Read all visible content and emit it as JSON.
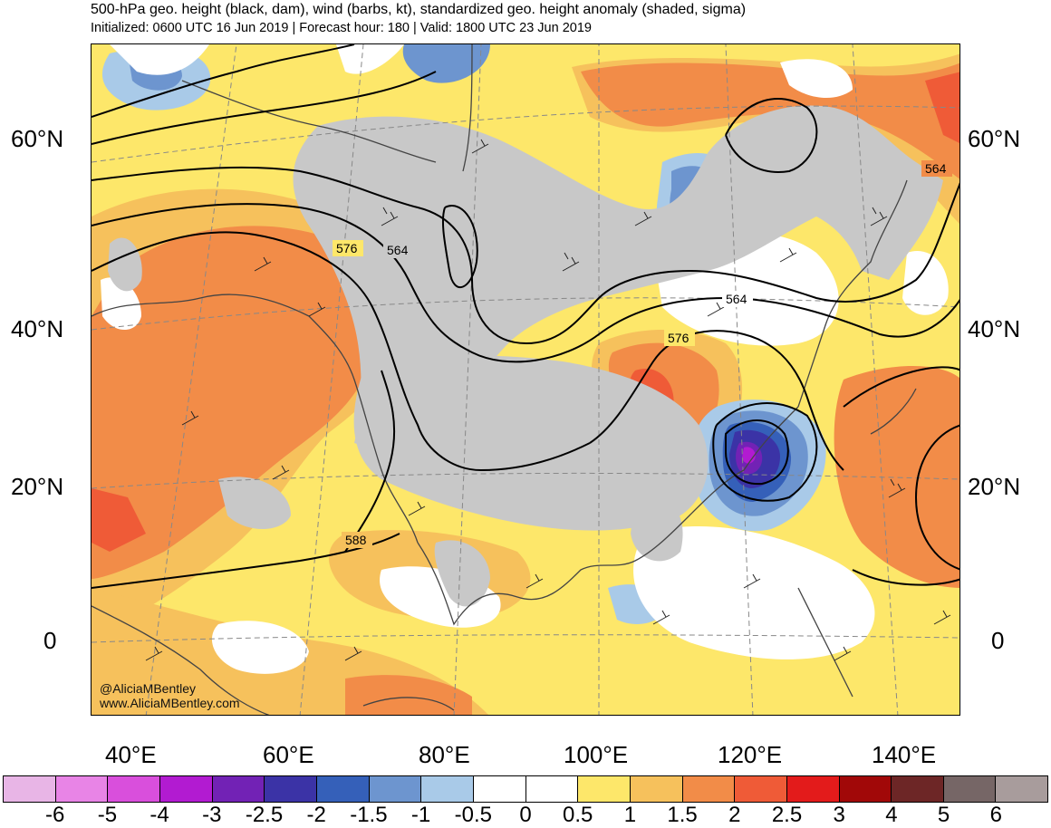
{
  "header": {
    "title": "500-hPa geo. height (black, dam), wind (barbs, kt), standardized geo. height anomaly (shaded, sigma)",
    "subtitle": "Initialized: 0600 UTC 16 Jun 2019 | Forecast hour: 180 | Valid: 1800 UTC 23 Jun 2019"
  },
  "map": {
    "lat_labels": [
      "60°N",
      "40°N",
      "20°N",
      "0"
    ],
    "lon_labels": [
      "40°E",
      "60°E",
      "80°E",
      "100°E",
      "120°E",
      "140°E"
    ],
    "contour_labels": [
      "576",
      "564",
      "564",
      "576",
      "588",
      "564"
    ],
    "attribution": {
      "handle": "@AliciaMBentley",
      "site": "www.AliciaMBentley.com"
    }
  },
  "legend": {
    "bins": [
      {
        "color": "#e8b5e6"
      },
      {
        "color": "#e884e6"
      },
      {
        "color": "#d94fdc"
      },
      {
        "color": "#b21bd1"
      },
      {
        "color": "#7222b5"
      },
      {
        "color": "#3b33a6"
      },
      {
        "color": "#3560b9"
      },
      {
        "color": "#6d95cf"
      },
      {
        "color": "#a9cae8"
      },
      {
        "color": "#ffffff"
      },
      {
        "color": "#ffffff"
      },
      {
        "color": "#fde76a"
      },
      {
        "color": "#f6c15c"
      },
      {
        "color": "#f28c48"
      },
      {
        "color": "#ef5b37"
      },
      {
        "color": "#e31b1b"
      },
      {
        "color": "#a10808"
      },
      {
        "color": "#6d2626"
      },
      {
        "color": "#766666"
      },
      {
        "color": "#a89c9c"
      }
    ],
    "tick_labels": [
      "-6",
      "-5",
      "-4",
      "-3",
      "-2.5",
      "-2",
      "-1.5",
      "-1",
      "-0.5",
      "0",
      "0.5",
      "1",
      "1.5",
      "2",
      "2.5",
      "3",
      "4",
      "5",
      "6"
    ]
  },
  "colors": {
    "land_gray": "#c8c8c8",
    "coast": "#444444",
    "contour": "#000000"
  }
}
